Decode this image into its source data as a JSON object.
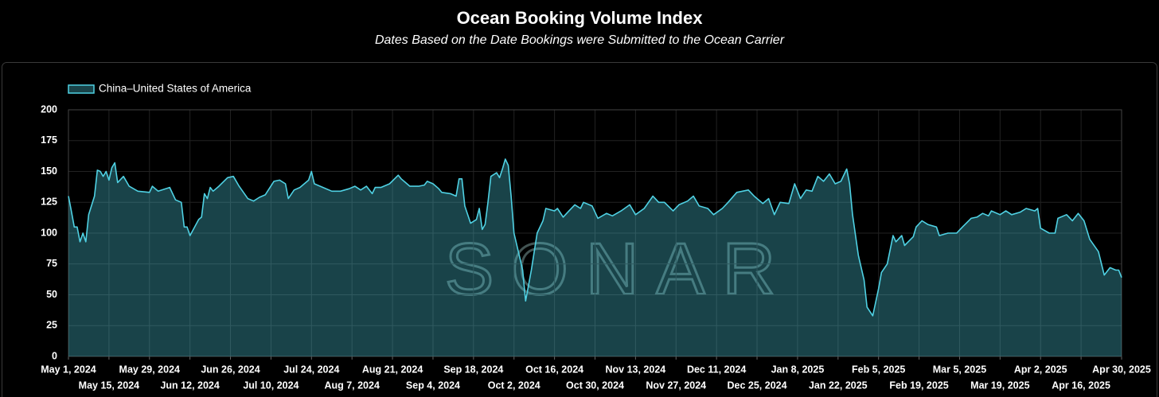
{
  "chart_data": {
    "type": "area",
    "title": "Ocean Booking Volume Index",
    "subtitle": "Dates Based on the Date Bookings were Submitted to the Ocean Carrier",
    "watermark": "SONAR",
    "legend": "top-left",
    "grid": true,
    "ylim": [
      0,
      200
    ],
    "yticks": [
      0,
      25,
      50,
      75,
      100,
      125,
      150,
      175,
      200
    ],
    "xlim": [
      "2024-05-01",
      "2025-04-30"
    ],
    "xticks": [
      {
        "value": "2024-05-01",
        "label": "May 1, 2024"
      },
      {
        "value": "2024-05-15",
        "label": "May 15, 2024"
      },
      {
        "value": "2024-05-29",
        "label": "May 29, 2024"
      },
      {
        "value": "2024-06-12",
        "label": "Jun 12, 2024"
      },
      {
        "value": "2024-06-26",
        "label": "Jun 26, 2024"
      },
      {
        "value": "2024-07-10",
        "label": "Jul 10, 2024"
      },
      {
        "value": "2024-07-24",
        "label": "Jul 24, 2024"
      },
      {
        "value": "2024-08-07",
        "label": "Aug 7, 2024"
      },
      {
        "value": "2024-08-21",
        "label": "Aug 21, 2024"
      },
      {
        "value": "2024-09-04",
        "label": "Sep 4, 2024"
      },
      {
        "value": "2024-09-18",
        "label": "Sep 18, 2024"
      },
      {
        "value": "2024-10-02",
        "label": "Oct 2, 2024"
      },
      {
        "value": "2024-10-16",
        "label": "Oct 16, 2024"
      },
      {
        "value": "2024-10-30",
        "label": "Oct 30, 2024"
      },
      {
        "value": "2024-11-13",
        "label": "Nov 13, 2024"
      },
      {
        "value": "2024-11-27",
        "label": "Nov 27, 2024"
      },
      {
        "value": "2024-12-11",
        "label": "Dec 11, 2024"
      },
      {
        "value": "2024-12-25",
        "label": "Dec 25, 2024"
      },
      {
        "value": "2025-01-08",
        "label": "Jan 8, 2025"
      },
      {
        "value": "2025-01-22",
        "label": "Jan 22, 2025"
      },
      {
        "value": "2025-02-05",
        "label": "Feb 5, 2025"
      },
      {
        "value": "2025-02-19",
        "label": "Feb 19, 2025"
      },
      {
        "value": "2025-03-05",
        "label": "Mar 5, 2025"
      },
      {
        "value": "2025-03-19",
        "label": "Mar 19, 2025"
      },
      {
        "value": "2025-04-02",
        "label": "Apr 2, 2025"
      },
      {
        "value": "2025-04-16",
        "label": "Apr 16, 2025"
      },
      {
        "value": "2025-04-30",
        "label": "Apr 30, 2025"
      }
    ],
    "x": [
      "2024-05-01",
      "2024-05-02",
      "2024-05-03",
      "2024-05-04",
      "2024-05-05",
      "2024-05-06",
      "2024-05-07",
      "2024-05-08",
      "2024-05-10",
      "2024-05-11",
      "2024-05-12",
      "2024-05-13",
      "2024-05-14",
      "2024-05-15",
      "2024-05-16",
      "2024-05-17",
      "2024-05-18",
      "2024-05-20",
      "2024-05-22",
      "2024-05-25",
      "2024-05-29",
      "2024-05-30",
      "2024-06-01",
      "2024-06-05",
      "2024-06-07",
      "2024-06-09",
      "2024-06-10",
      "2024-06-11",
      "2024-06-12",
      "2024-06-15",
      "2024-06-16",
      "2024-06-17",
      "2024-06-18",
      "2024-06-19",
      "2024-06-20",
      "2024-06-22",
      "2024-06-25",
      "2024-06-27",
      "2024-06-29",
      "2024-07-02",
      "2024-07-04",
      "2024-07-06",
      "2024-07-08",
      "2024-07-11",
      "2024-07-13",
      "2024-07-15",
      "2024-07-16",
      "2024-07-18",
      "2024-07-20",
      "2024-07-23",
      "2024-07-24",
      "2024-07-25",
      "2024-07-28",
      "2024-07-31",
      "2024-08-03",
      "2024-08-06",
      "2024-08-08",
      "2024-08-10",
      "2024-08-12",
      "2024-08-14",
      "2024-08-15",
      "2024-08-17",
      "2024-08-20",
      "2024-08-23",
      "2024-08-24",
      "2024-08-27",
      "2024-08-30",
      "2024-09-01",
      "2024-09-02",
      "2024-09-04",
      "2024-09-06",
      "2024-09-07",
      "2024-09-10",
      "2024-09-12",
      "2024-09-13",
      "2024-09-14",
      "2024-09-15",
      "2024-09-17",
      "2024-09-19",
      "2024-09-20",
      "2024-09-21",
      "2024-09-22",
      "2024-09-23",
      "2024-09-24",
      "2024-09-26",
      "2024-09-27",
      "2024-09-28",
      "2024-09-29",
      "2024-09-30",
      "2024-10-01",
      "2024-10-02",
      "2024-10-04",
      "2024-10-05",
      "2024-10-06",
      "2024-10-08",
      "2024-10-10",
      "2024-10-12",
      "2024-10-13",
      "2024-10-16",
      "2024-10-17",
      "2024-10-19",
      "2024-10-21",
      "2024-10-23",
      "2024-10-25",
      "2024-10-26",
      "2024-10-29",
      "2024-10-31",
      "2024-11-03",
      "2024-11-05",
      "2024-11-08",
      "2024-11-11",
      "2024-11-13",
      "2024-11-16",
      "2024-11-19",
      "2024-11-21",
      "2024-11-23",
      "2024-11-26",
      "2024-11-28",
      "2024-12-01",
      "2024-12-03",
      "2024-12-05",
      "2024-12-08",
      "2024-12-10",
      "2024-12-13",
      "2024-12-15",
      "2024-12-18",
      "2024-12-22",
      "2024-12-24",
      "2024-12-27",
      "2024-12-29",
      "2024-12-31",
      "2025-01-02",
      "2025-01-05",
      "2025-01-07",
      "2025-01-09",
      "2025-01-11",
      "2025-01-13",
      "2025-01-15",
      "2025-01-17",
      "2025-01-19",
      "2025-01-21",
      "2025-01-23",
      "2025-01-25",
      "2025-01-26",
      "2025-01-27",
      "2025-01-29",
      "2025-01-31",
      "2025-02-01",
      "2025-02-03",
      "2025-02-05",
      "2025-02-06",
      "2025-02-08",
      "2025-02-10",
      "2025-02-11",
      "2025-02-13",
      "2025-02-14",
      "2025-02-17",
      "2025-02-18",
      "2025-02-20",
      "2025-02-22",
      "2025-02-25",
      "2025-02-26",
      "2025-03-01",
      "2025-03-04",
      "2025-03-06",
      "2025-03-09",
      "2025-03-11",
      "2025-03-13",
      "2025-03-15",
      "2025-03-16",
      "2025-03-19",
      "2025-03-21",
      "2025-03-23",
      "2025-03-26",
      "2025-03-28",
      "2025-03-31",
      "2025-04-01",
      "2025-04-02",
      "2025-04-05",
      "2025-04-07",
      "2025-04-08",
      "2025-04-11",
      "2025-04-13",
      "2025-04-15",
      "2025-04-17",
      "2025-04-19",
      "2025-04-22",
      "2025-04-24",
      "2025-04-26",
      "2025-04-28",
      "2025-04-29",
      "2025-04-30"
    ],
    "series": [
      {
        "name": "China–United States of America",
        "color": "#4fd1e3",
        "values": [
          130,
          118,
          105,
          105,
          93,
          100,
          93,
          115,
          130,
          151,
          150,
          146,
          150,
          143,
          153,
          157,
          141,
          146,
          138,
          134,
          133,
          138,
          134,
          137,
          127,
          125,
          105,
          105,
          98,
          111,
          113,
          132,
          128,
          137,
          134,
          138,
          145,
          146,
          138,
          128,
          126,
          129,
          131,
          142,
          143,
          140,
          128,
          135,
          137,
          143,
          150,
          140,
          137,
          134,
          134,
          136,
          138,
          135,
          138,
          132,
          137,
          137,
          140,
          147,
          144,
          138,
          138,
          139,
          142,
          140,
          136,
          133,
          132,
          130,
          144,
          144,
          122,
          108,
          111,
          120,
          103,
          107,
          125,
          146,
          149,
          145,
          152,
          160,
          155,
          130,
          100,
          80,
          70,
          45,
          70,
          100,
          110,
          120,
          118,
          120,
          113,
          118,
          123,
          120,
          125,
          122,
          112,
          116,
          114,
          118,
          123,
          115,
          120,
          130,
          125,
          125,
          118,
          123,
          126,
          130,
          122,
          120,
          115,
          120,
          125,
          133,
          135,
          130,
          124,
          128,
          115,
          125,
          124,
          140,
          128,
          135,
          134,
          146,
          142,
          148,
          140,
          142,
          152,
          140,
          115,
          82,
          62,
          40,
          33,
          55,
          68,
          75,
          98,
          93,
          98,
          90,
          97,
          105,
          110,
          107,
          105,
          98,
          100,
          100,
          105,
          112,
          113,
          116,
          114,
          118,
          115,
          118,
          115,
          117,
          120,
          118,
          120,
          104,
          100,
          100,
          112,
          115,
          110,
          116,
          110,
          95,
          85,
          66,
          72,
          70,
          70,
          64
        ]
      }
    ]
  }
}
